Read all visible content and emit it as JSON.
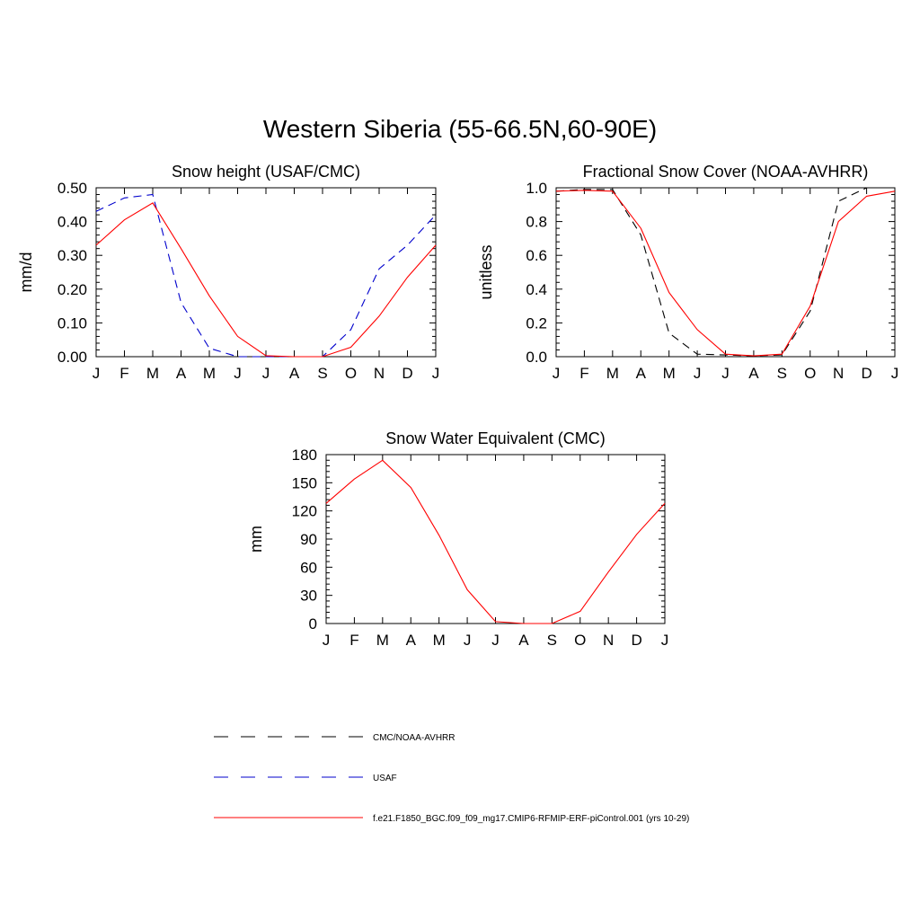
{
  "title": "Western Siberia (55-66.5N,60-90E)",
  "months": [
    "J",
    "F",
    "M",
    "A",
    "M",
    "J",
    "J",
    "A",
    "S",
    "O",
    "N",
    "D",
    "J"
  ],
  "colors": {
    "obs_black": "#000000",
    "obs_blue": "#0000cc",
    "model_red": "#ff0000"
  },
  "legend": [
    {
      "label": "CMC/NOAA-AVHRR",
      "color": "#000000",
      "style": "dashed"
    },
    {
      "label": "USAF",
      "color": "#0000cc",
      "style": "dashed"
    },
    {
      "label": "f.e21.F1850_BGC.f09_f09_mg17.CMIP6-RFMIP-ERF-piControl.001 (yrs 10-29)",
      "color": "#ff0000",
      "style": "solid"
    }
  ],
  "chart_data": [
    {
      "type": "line",
      "title": "Snow height (USAF/CMC)",
      "ylabel": "mm/d",
      "ylim": [
        0,
        0.5
      ],
      "yticks": [
        "0.00",
        "0.10",
        "0.20",
        "0.30",
        "0.40",
        "0.50"
      ],
      "ytick_values": [
        0,
        0.1,
        0.2,
        0.3,
        0.4,
        0.5
      ],
      "series": [
        {
          "name": "CMC/NOAA-AVHRR",
          "style": "dashed",
          "color": "#000000",
          "values": [
            0,
            0,
            0,
            0,
            0,
            0,
            0,
            0,
            0,
            0,
            0,
            0,
            0
          ]
        },
        {
          "name": "USAF",
          "style": "dashed",
          "color": "#0000cc",
          "values": [
            0.43,
            0.47,
            0.48,
            0.16,
            0.025,
            0.0,
            0.0,
            0.0,
            0.0,
            0.08,
            0.26,
            0.33,
            0.42
          ]
        },
        {
          "name": "f.e21.F1850_BGC.f09_f09_mg17.CMIP6-RFMIP-ERF-piControl.001 (yrs 10-29)",
          "style": "solid",
          "color": "#ff0000",
          "values": [
            0.33,
            0.405,
            0.455,
            0.32,
            0.18,
            0.06,
            0.003,
            0.0,
            0.0,
            0.028,
            0.12,
            0.235,
            0.33
          ]
        }
      ]
    },
    {
      "type": "line",
      "title": "Fractional Snow Cover (NOAA-AVHRR)",
      "ylabel": "unitless",
      "ylim": [
        0,
        1
      ],
      "yticks": [
        "0.0",
        "0.2",
        "0.4",
        "0.6",
        "0.8",
        "1.0"
      ],
      "ytick_values": [
        0,
        0.2,
        0.4,
        0.6,
        0.8,
        1.0
      ],
      "series": [
        {
          "name": "CMC/NOAA-AVHRR",
          "style": "dashed",
          "color": "#000000",
          "values": [
            0.98,
            0.99,
            0.99,
            0.72,
            0.14,
            0.015,
            0.01,
            0.005,
            0.01,
            0.27,
            0.92,
            1.0,
            1.0
          ]
        },
        {
          "name": "f.e21.F1850_BGC.f09_f09_mg17.CMIP6-RFMIP-ERF-piControl.001 (yrs 10-29)",
          "style": "solid",
          "color": "#ff0000",
          "values": [
            0.98,
            0.985,
            0.98,
            0.76,
            0.38,
            0.16,
            0.015,
            0.005,
            0.015,
            0.3,
            0.8,
            0.95,
            0.98
          ]
        }
      ]
    },
    {
      "type": "line",
      "title": "Snow Water Equivalent (CMC)",
      "ylabel": "mm",
      "ylim": [
        0,
        180
      ],
      "yticks": [
        "0",
        "30",
        "60",
        "90",
        "120",
        "150",
        "180"
      ],
      "ytick_values": [
        0,
        30,
        60,
        90,
        120,
        150,
        180
      ],
      "series": [
        {
          "name": "CMC/NOAA-AVHRR",
          "style": "dashed",
          "color": "#000000",
          "values": [
            0,
            0,
            0,
            0,
            0,
            0,
            0,
            0,
            0,
            0,
            0,
            0,
            0
          ]
        },
        {
          "name": "f.e21.F1850_BGC.f09_f09_mg17.CMIP6-RFMIP-ERF-piControl.001 (yrs 10-29)",
          "style": "solid",
          "color": "#ff0000",
          "values": [
            128,
            154,
            174,
            145,
            94,
            36,
            2,
            0,
            0,
            13,
            55,
            95,
            128
          ]
        }
      ]
    }
  ]
}
